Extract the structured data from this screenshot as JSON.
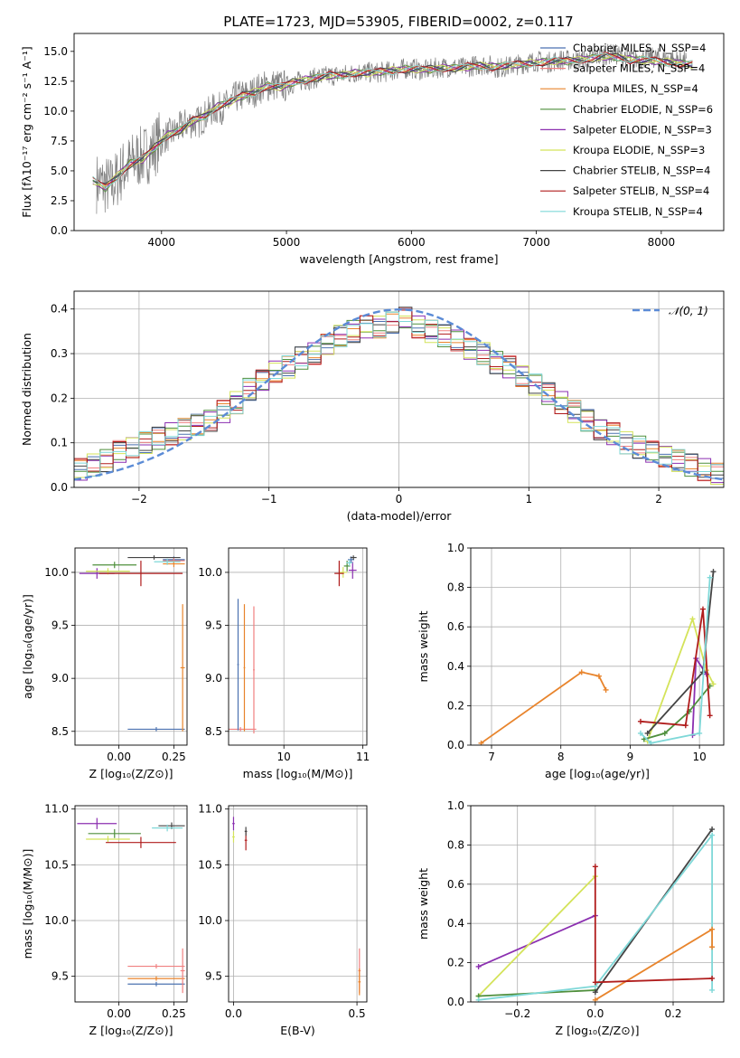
{
  "figure": {
    "title": "PLATE=1723, MJD=53905, FIBERID=0002, z=0.117"
  },
  "chart_data": [
    {
      "id": "spectrum",
      "type": "line",
      "xlabel": "wavelength [Angstrom, rest frame]",
      "ylabel": "Flux [fλ10⁻¹⁷ erg cm⁻² s⁻¹ A⁻¹]",
      "xlim": [
        3300,
        8500
      ],
      "ylim": [
        0,
        16.5
      ],
      "xticks": [
        4000,
        5000,
        6000,
        7000,
        8000
      ],
      "yticks": [
        0.0,
        2.5,
        5.0,
        7.5,
        10.0,
        12.5,
        15.0
      ],
      "grid": false,
      "legend_position": "upper-right",
      "data_x": [
        3480,
        3600,
        3700,
        3800,
        3900,
        4000,
        4100,
        4200,
        4300,
        4400,
        4500,
        4600,
        4700,
        4800,
        4900,
        5000,
        5100,
        5200,
        5300,
        5400,
        5500,
        5600,
        5700,
        5800,
        5900,
        6000,
        6100,
        6200,
        6300,
        6400,
        6500,
        6600,
        6700,
        6800,
        6900,
        7000,
        7100,
        7200,
        7300,
        7400,
        7500,
        7600,
        7700,
        7800,
        7900,
        8000,
        8100,
        8200
      ],
      "data_y": [
        4.0,
        3.7,
        5.2,
        6.0,
        6.5,
        7.7,
        8.2,
        9.0,
        9.1,
        10.1,
        10.3,
        11.2,
        11.4,
        12.0,
        12.2,
        12.1,
        12.5,
        12.7,
        12.9,
        13.0,
        13.1,
        13.3,
        13.2,
        13.3,
        13.5,
        13.6,
        13.4,
        13.6,
        13.7,
        13.6,
        13.8,
        13.9,
        13.6,
        13.8,
        14.0,
        14.2,
        14.1,
        14.3,
        14.2,
        14.4,
        14.6,
        14.8,
        14.6,
        14.3,
        14.5,
        14.4,
        14.3,
        14.2
      ],
      "series": [
        {
          "name": "Chabrier MILES, N_SSP=4",
          "color": "#4c72b0"
        },
        {
          "name": "Salpeter MILES, N_SSP=4",
          "color": "#f08080"
        },
        {
          "name": "Kroupa MILES, N_SSP=4",
          "color": "#e8842c"
        },
        {
          "name": "Chabrier ELODIE, N_SSP=6",
          "color": "#4f8f3c"
        },
        {
          "name": "Salpeter ELODIE, N_SSP=3",
          "color": "#8b2fb0"
        },
        {
          "name": "Kroupa ELODIE, N_SSP=3",
          "color": "#d4e35a"
        },
        {
          "name": "Chabrier STELIB, N_SSP=4",
          "color": "#444444"
        },
        {
          "name": "Salpeter STELIB, N_SSP=4",
          "color": "#b01c1c"
        },
        {
          "name": "Kroupa STELIB, N_SSP=4",
          "color": "#7fd8d8"
        }
      ],
      "model_x": [
        3450,
        3550,
        3650,
        3750,
        3850,
        3950,
        4050,
        4150,
        4250,
        4350,
        4450,
        4550,
        4650,
        4750,
        4850,
        4950,
        5050,
        5150,
        5250,
        5350,
        5450,
        5550,
        5650,
        5750,
        5850,
        5950,
        6050,
        6150,
        6250,
        6350,
        6450,
        6550,
        6650,
        6750,
        6850,
        6950,
        7050,
        7150,
        7250,
        7350,
        7450,
        7550,
        7650,
        7750,
        7850,
        7950,
        8050,
        8150,
        8250
      ],
      "model_y": [
        4.2,
        3.6,
        4.6,
        5.6,
        6.0,
        7.0,
        8.0,
        8.4,
        9.2,
        9.6,
        10.4,
        10.8,
        11.3,
        11.6,
        12.1,
        12.0,
        12.4,
        12.6,
        12.8,
        13.0,
        13.0,
        13.2,
        13.2,
        13.3,
        13.4,
        13.5,
        13.5,
        13.5,
        13.6,
        13.6,
        13.7,
        13.8,
        13.7,
        13.8,
        13.9,
        14.0,
        14.1,
        14.2,
        14.2,
        14.3,
        14.4,
        14.6,
        14.5,
        14.3,
        14.3,
        14.2,
        14.1,
        14.0,
        13.9
      ]
    },
    {
      "id": "residuals",
      "type": "line",
      "xlabel": "(data-model)/error",
      "ylabel": "Normed distribution",
      "xlim": [
        -2.5,
        2.5
      ],
      "ylim": [
        0,
        0.44
      ],
      "xticks": [
        -2,
        -1,
        0,
        1,
        2
      ],
      "yticks": [
        0.0,
        0.1,
        0.2,
        0.3,
        0.4
      ],
      "grid": true,
      "legend_position": "upper-right",
      "legend_label": "𝒩(0, 1)",
      "normal_mu": 0,
      "normal_sigma": 1,
      "bin_edges_start": -2.5,
      "bin_width": 0.1,
      "histogram": [
        0.04,
        0.05,
        0.06,
        0.08,
        0.09,
        0.1,
        0.11,
        0.12,
        0.13,
        0.14,
        0.15,
        0.17,
        0.19,
        0.22,
        0.24,
        0.26,
        0.27,
        0.29,
        0.3,
        0.32,
        0.34,
        0.35,
        0.36,
        0.36,
        0.37,
        0.38,
        0.36,
        0.35,
        0.34,
        0.33,
        0.31,
        0.3,
        0.28,
        0.27,
        0.25,
        0.23,
        0.21,
        0.19,
        0.17,
        0.15,
        0.13,
        0.12,
        0.1,
        0.09,
        0.08,
        0.07,
        0.06,
        0.05,
        0.04,
        0.03
      ]
    },
    {
      "id": "age-vs-Z",
      "type": "scatter",
      "xlabel": "Z [log₁₀(Z/Z⊙)]",
      "ylabel": "age  [log₁₀(age/yr)]",
      "xlim": [
        -0.2,
        0.31
      ],
      "ylim": [
        8.37,
        10.23
      ],
      "xticks": [
        0.0,
        0.25
      ],
      "yticks": [
        8.5,
        9.0,
        9.5,
        10.0
      ],
      "grid": true,
      "points": [
        {
          "x": 0.25,
          "y": 10.12,
          "xerr": 0.05,
          "yerr": 0.03,
          "color": "#4c72b0"
        },
        {
          "x": 0.25,
          "y": 10.11,
          "xerr": 0.05,
          "yerr": 0.03,
          "color": "#f08080"
        },
        {
          "x": 0.25,
          "y": 10.08,
          "xerr": 0.05,
          "yerr": 0.03,
          "color": "#e8842c"
        },
        {
          "x": -0.02,
          "y": 10.07,
          "xerr": 0.1,
          "yerr": 0.03,
          "color": "#4f8f3c"
        },
        {
          "x": -0.1,
          "y": 9.99,
          "xerr": 0.08,
          "yerr": 0.05,
          "color": "#8b2fb0"
        },
        {
          "x": -0.05,
          "y": 10.01,
          "xerr": 0.1,
          "yerr": 0.03,
          "color": "#d4e35a"
        },
        {
          "x": 0.16,
          "y": 10.14,
          "xerr": 0.12,
          "yerr": 0.02,
          "color": "#444444"
        },
        {
          "x": 0.1,
          "y": 9.99,
          "xerr": 0.19,
          "yerr": 0.12,
          "color": "#b01c1c"
        },
        {
          "x": 0.22,
          "y": 10.1,
          "xerr": 0.06,
          "yerr": 0.03,
          "color": "#7fd8d8"
        },
        {
          "x": 0.17,
          "y": 8.52,
          "xerr": 0.13,
          "yerr": 0.02,
          "color": "#4c72b0"
        },
        {
          "x": 0.29,
          "y": 9.1,
          "xerr": 0.01,
          "yerr": 0.6,
          "color": "#e8842c"
        }
      ]
    },
    {
      "id": "age-vs-mass",
      "type": "scatter",
      "xlabel": "mass [log₁₀(M/M⊙)]",
      "ylabel": "",
      "xlim": [
        9.3,
        11.05
      ],
      "ylim": [
        8.37,
        10.23
      ],
      "xticks": [
        10,
        11
      ],
      "yticks": [
        8.5,
        9.0,
        9.5,
        10.0
      ],
      "grid": true,
      "points": [
        {
          "x": 9.45,
          "y": 8.52,
          "xerr": 0.2,
          "yerr": 0.02,
          "color": "#f08080"
        },
        {
          "x": 9.42,
          "y": 9.13,
          "xerr": 0.01,
          "yerr": 0.62,
          "color": "#4c72b0"
        },
        {
          "x": 9.5,
          "y": 9.1,
          "xerr": 0.01,
          "yerr": 0.6,
          "color": "#e8842c"
        },
        {
          "x": 9.62,
          "y": 9.08,
          "xerr": 0.01,
          "yerr": 0.6,
          "color": "#f08080"
        },
        {
          "x": 10.85,
          "y": 10.12,
          "xerr": 0.04,
          "yerr": 0.03,
          "color": "#4c72b0"
        },
        {
          "x": 10.8,
          "y": 10.06,
          "xerr": 0.04,
          "yerr": 0.05,
          "color": "#4f8f3c"
        },
        {
          "x": 10.87,
          "y": 10.02,
          "xerr": 0.05,
          "yerr": 0.08,
          "color": "#8b2fb0"
        },
        {
          "x": 10.75,
          "y": 10.0,
          "xerr": 0.05,
          "yerr": 0.05,
          "color": "#d4e35a"
        },
        {
          "x": 10.88,
          "y": 10.14,
          "xerr": 0.04,
          "yerr": 0.02,
          "color": "#444444"
        },
        {
          "x": 10.7,
          "y": 9.99,
          "xerr": 0.06,
          "yerr": 0.12,
          "color": "#b01c1c"
        },
        {
          "x": 10.83,
          "y": 10.09,
          "xerr": 0.04,
          "yerr": 0.03,
          "color": "#7fd8d8"
        }
      ]
    },
    {
      "id": "weight-vs-age",
      "type": "line",
      "xlabel": "age  [log₁₀(age/yr)]",
      "ylabel": "mass weight",
      "xlim": [
        6.7,
        10.35
      ],
      "ylim": [
        0,
        1
      ],
      "xticks": [
        7,
        8,
        9,
        10
      ],
      "yticks": [
        0.0,
        0.2,
        0.4,
        0.6,
        0.8,
        1.0
      ],
      "grid": true,
      "series": [
        {
          "name": "Kroupa MILES",
          "color": "#e8842c",
          "x": [
            6.85,
            8.3,
            8.55,
            8.65
          ],
          "y": [
            0.01,
            0.37,
            0.35,
            0.28
          ]
        },
        {
          "name": "Kroupa ELODIE",
          "color": "#d4e35a",
          "x": [
            9.25,
            9.9,
            10.1,
            10.2
          ],
          "y": [
            0.02,
            0.64,
            0.38,
            0.31
          ]
        },
        {
          "name": "Salpeter ELODIE",
          "color": "#8b2fb0",
          "x": [
            9.9,
            9.95,
            10.1
          ],
          "y": [
            0.05,
            0.44,
            0.36
          ]
        },
        {
          "name": "Chabrier ELODIE",
          "color": "#4f8f3c",
          "x": [
            9.2,
            9.5,
            9.85,
            10.15
          ],
          "y": [
            0.03,
            0.06,
            0.17,
            0.3
          ]
        },
        {
          "name": "Salpeter STELIB",
          "color": "#b01c1c",
          "x": [
            9.15,
            9.8,
            10.05,
            10.15
          ],
          "y": [
            0.12,
            0.1,
            0.69,
            0.15
          ]
        },
        {
          "name": "Chabrier STELIB",
          "color": "#444444",
          "x": [
            9.25,
            10.05,
            10.2
          ],
          "y": [
            0.06,
            0.37,
            0.88
          ]
        },
        {
          "name": "Kroupa STELIB",
          "color": "#7fd8d8",
          "x": [
            9.15,
            9.3,
            10.0,
            10.15
          ],
          "y": [
            0.06,
            0.01,
            0.06,
            0.85
          ]
        }
      ]
    },
    {
      "id": "mass-vs-Z",
      "type": "scatter",
      "xlabel": "Z [log₁₀(Z/Z⊙)]",
      "ylabel": "mass [log₁₀(M/M⊙)]",
      "xlim": [
        -0.2,
        0.31
      ],
      "ylim": [
        9.27,
        11.03
      ],
      "xticks": [
        0.0,
        0.25
      ],
      "yticks": [
        9.5,
        10.0,
        10.5,
        11.0
      ],
      "grid": true,
      "points": [
        {
          "x": 0.24,
          "y": 10.85,
          "xerr": 0.06,
          "yerr": 0.03,
          "color": "#444444"
        },
        {
          "x": 0.22,
          "y": 10.83,
          "xerr": 0.07,
          "yerr": 0.03,
          "color": "#7fd8d8"
        },
        {
          "x": -0.1,
          "y": 10.87,
          "xerr": 0.09,
          "yerr": 0.05,
          "color": "#8b2fb0"
        },
        {
          "x": -0.02,
          "y": 10.78,
          "xerr": 0.12,
          "yerr": 0.04,
          "color": "#4f8f3c"
        },
        {
          "x": -0.05,
          "y": 10.73,
          "xerr": 0.1,
          "yerr": 0.03,
          "color": "#d4e35a"
        },
        {
          "x": 0.1,
          "y": 10.7,
          "xerr": 0.16,
          "yerr": 0.05,
          "color": "#b01c1c"
        },
        {
          "x": 0.17,
          "y": 9.59,
          "xerr": 0.13,
          "yerr": 0.02,
          "color": "#f08080"
        },
        {
          "x": 0.17,
          "y": 9.48,
          "xerr": 0.13,
          "yerr": 0.02,
          "color": "#e8842c"
        },
        {
          "x": 0.17,
          "y": 9.43,
          "xerr": 0.13,
          "yerr": 0.02,
          "color": "#4c72b0"
        },
        {
          "x": 0.29,
          "y": 9.55,
          "xerr": 0.01,
          "yerr": 0.2,
          "color": "#f08080"
        }
      ]
    },
    {
      "id": "mass-vs-EBV",
      "type": "scatter",
      "xlabel": "E(B-V)",
      "ylabel": "",
      "xlim": [
        -0.02,
        0.54
      ],
      "ylim": [
        9.27,
        11.03
      ],
      "xticks": [
        0.0,
        0.5
      ],
      "yticks": [
        9.5,
        10.0,
        10.5,
        11.0
      ],
      "grid": true,
      "points": [
        {
          "x": 0.0,
          "y": 10.87,
          "xerr": 0.005,
          "yerr": 0.06,
          "color": "#8b2fb0"
        },
        {
          "x": 0.0,
          "y": 10.75,
          "xerr": 0.005,
          "yerr": 0.05,
          "color": "#d4e35a"
        },
        {
          "x": 0.05,
          "y": 10.72,
          "xerr": 0.005,
          "yerr": 0.09,
          "color": "#b01c1c"
        },
        {
          "x": 0.05,
          "y": 10.8,
          "xerr": 0.005,
          "yerr": 0.04,
          "color": "#444444"
        },
        {
          "x": 0.51,
          "y": 9.55,
          "xerr": 0.005,
          "yerr": 0.2,
          "color": "#f08080"
        },
        {
          "x": 0.51,
          "y": 9.45,
          "xerr": 0.005,
          "yerr": 0.12,
          "color": "#e8842c"
        }
      ]
    },
    {
      "id": "weight-vs-Z",
      "type": "line",
      "xlabel": "Z [log₁₀(Z/Z⊙)]",
      "ylabel": "mass weight",
      "xlim": [
        -0.32,
        0.33
      ],
      "ylim": [
        0,
        1
      ],
      "xticks": [
        -0.2,
        0.0,
        0.2
      ],
      "yticks": [
        0.0,
        0.2,
        0.4,
        0.6,
        0.8,
        1.0
      ],
      "grid": true,
      "series": [
        {
          "name": "Salpeter ELODIE",
          "color": "#8b2fb0",
          "x": [
            -0.3,
            0.0
          ],
          "y": [
            0.18,
            0.44
          ]
        },
        {
          "name": "Kroupa ELODIE",
          "color": "#d4e35a",
          "x": [
            -0.3,
            0.0
          ],
          "y": [
            0.03,
            0.64
          ]
        },
        {
          "name": "Chabrier ELODIE",
          "color": "#4f8f3c",
          "x": [
            -0.3,
            0.0
          ],
          "y": [
            0.03,
            0.06
          ]
        },
        {
          "name": "Chabrier STELIB",
          "color": "#444444",
          "x": [
            0.0,
            0.3
          ],
          "y": [
            0.05,
            0.88
          ]
        },
        {
          "name": "Kroupa STELIB",
          "color": "#7fd8d8",
          "x": [
            -0.3,
            0.0,
            0.3,
            0.3
          ],
          "y": [
            0.01,
            0.08,
            0.85,
            0.06
          ]
        },
        {
          "name": "Kroupa MILES",
          "color": "#e8842c",
          "x": [
            0.0,
            0.3,
            0.3
          ],
          "y": [
            0.01,
            0.37,
            0.28
          ]
        },
        {
          "name": "Salpeter STELIB",
          "color": "#b01c1c",
          "x": [
            0.0,
            0.0,
            0.3
          ],
          "y": [
            0.69,
            0.1,
            0.12
          ]
        }
      ]
    }
  ]
}
